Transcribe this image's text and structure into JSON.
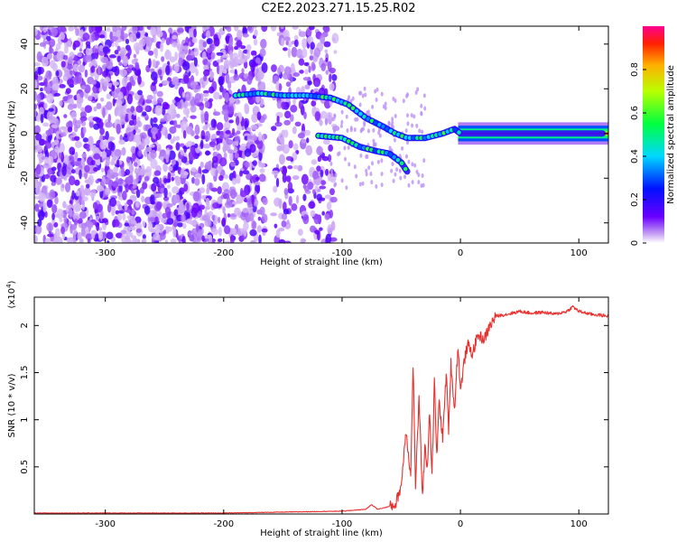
{
  "title": "C2E2.2023.271.15.25.R02",
  "chart_data": [
    {
      "type": "heatmap",
      "xlabel": "Height of straight line (km)",
      "ylabel": "Frequency (Hz)",
      "xlim": [
        -360,
        125
      ],
      "ylim": [
        -49,
        48
      ],
      "xticks": [
        -300,
        -200,
        -100,
        0,
        100
      ],
      "yticks": [
        -40,
        -20,
        0,
        20,
        40
      ],
      "colorbar": {
        "label": "Normalized spectral amplitude",
        "range": [
          0.0,
          1.0
        ],
        "ticks": [
          0.0,
          0.2,
          0.4,
          0.6,
          0.8
        ]
      },
      "ridges": [
        {
          "x": [
            -190,
            -170,
            -150,
            -130,
            -110,
            -95,
            -80,
            -65,
            -55,
            -45,
            -30,
            -15,
            -5,
            0,
            40,
            80,
            120
          ],
          "y": [
            17,
            18,
            17,
            17,
            16,
            13,
            7,
            3,
            0,
            -2,
            -2,
            0,
            2,
            0,
            0,
            0,
            0
          ]
        },
        {
          "x": [
            -120,
            -100,
            -85,
            -70,
            -60,
            -50,
            -45
          ],
          "y": [
            -1,
            -2,
            -6,
            -8,
            -9,
            -13,
            -17
          ]
        }
      ]
    },
    {
      "type": "line",
      "xlabel": "Height of straight line (km)",
      "ylabel": "SNR (10 * v/v)",
      "y_multiplier": "(x10",
      "y_multiplier_exp": "4",
      "y_multiplier_close": ")",
      "xlim": [
        -360,
        125
      ],
      "ylim": [
        0,
        2.3
      ],
      "xticks": [
        -300,
        -200,
        -100,
        0,
        100
      ],
      "yticks": [
        0.5,
        1.0,
        1.5,
        2.0
      ],
      "series": [
        {
          "color": "#e8302e",
          "x": [
            -360,
            -300,
            -200,
            -150,
            -100,
            -80,
            -75,
            -70,
            -60,
            -55,
            -50,
            -46,
            -42,
            -40,
            -38,
            -35,
            -32,
            -30,
            -28,
            -26,
            -24,
            -22,
            -20,
            -18,
            -15,
            -12,
            -10,
            -8,
            -5,
            -2,
            0,
            3,
            6,
            10,
            15,
            20,
            25,
            30,
            40,
            50,
            60,
            70,
            80,
            90,
            95,
            100,
            110,
            125
          ],
          "y": [
            0.01,
            0.01,
            0.01,
            0.02,
            0.03,
            0.05,
            0.1,
            0.05,
            0.08,
            0.1,
            0.3,
            0.9,
            0.4,
            1.6,
            0.3,
            1.2,
            0.2,
            0.7,
            0.5,
            1.1,
            0.4,
            1.4,
            0.6,
            1.2,
            0.8,
            1.5,
            0.9,
            1.6,
            1.1,
            1.8,
            1.3,
            1.6,
            1.8,
            1.7,
            1.9,
            1.85,
            2.0,
            2.1,
            2.12,
            2.15,
            2.13,
            2.14,
            2.12,
            2.15,
            2.2,
            2.15,
            2.12,
            2.1
          ]
        }
      ]
    }
  ]
}
